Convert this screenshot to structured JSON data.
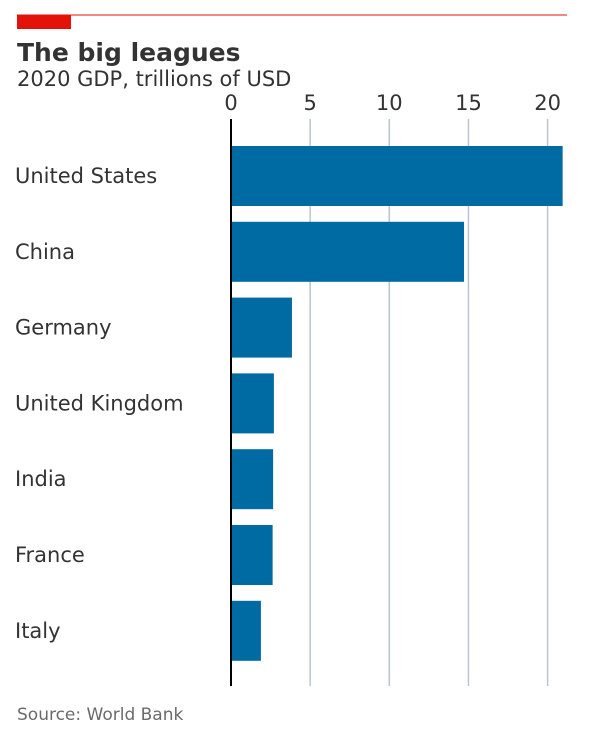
{
  "header": {
    "title": "The big leagues",
    "subtitle": "2020 GDP, trillions of USD",
    "accent_color": "#e3120b"
  },
  "footer": {
    "source": "Source: World Bank"
  },
  "chart_data": {
    "type": "bar",
    "orientation": "horizontal",
    "title": "The big leagues",
    "subtitle": "2020 GDP, trillions of USD",
    "categories": [
      "United States",
      "China",
      "Germany",
      "United Kingdom",
      "India",
      "France",
      "Italy"
    ],
    "values": [
      20.95,
      14.72,
      3.85,
      2.71,
      2.66,
      2.63,
      1.89
    ],
    "xlim": [
      0,
      21
    ],
    "xticks": [
      0,
      5,
      10,
      15,
      20
    ],
    "xtick_labels": [
      "0",
      "5",
      "10",
      "15",
      "20"
    ],
    "xaxis_position": "top",
    "grid": true,
    "bar_color": "#006ba2",
    "grid_color": "#b7c6cf",
    "xlabel": "",
    "ylabel": ""
  }
}
